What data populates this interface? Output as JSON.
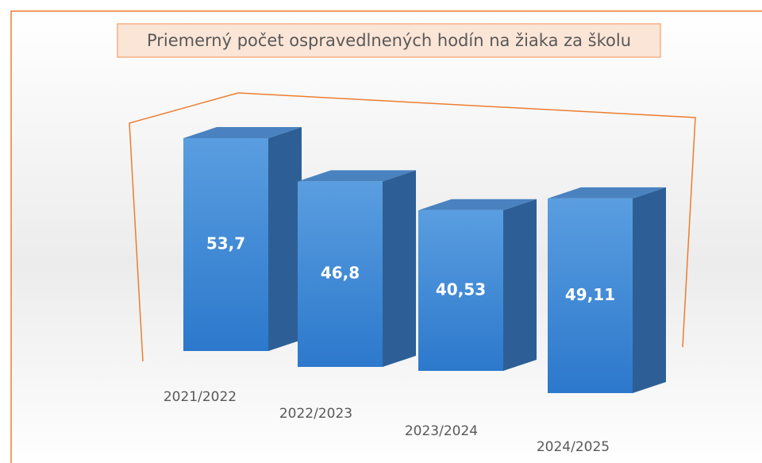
{
  "chart_data": {
    "type": "bar3d",
    "title": "Priemerný počet ospravedlnených hodín na  žiaka za školu",
    "categories": [
      "2021/2022",
      "2022/2023",
      "2023/2024",
      "2024/2025"
    ],
    "values": [
      53.7,
      46.8,
      40.53,
      49.11
    ],
    "value_labels": [
      "53,7",
      "46,8",
      "40,53",
      "49,11"
    ],
    "color": "#4a8fd6"
  }
}
